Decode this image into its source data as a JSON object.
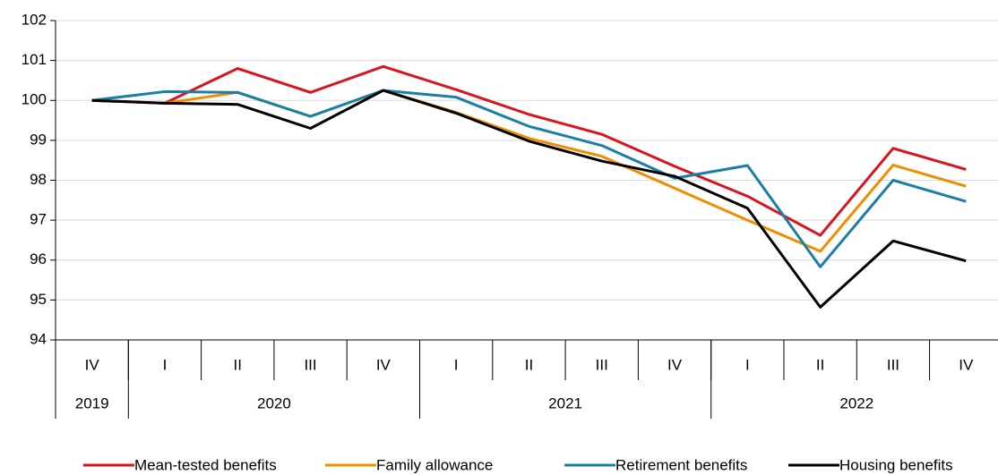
{
  "chart_data": {
    "type": "line",
    "categories": [
      "IV",
      "I",
      "II",
      "III",
      "IV",
      "I",
      "II",
      "III",
      "IV",
      "I",
      "II",
      "III",
      "IV"
    ],
    "year_groups": [
      {
        "name": "2019",
        "count": 1
      },
      {
        "name": "2020",
        "count": 4
      },
      {
        "name": "2021",
        "count": 4
      },
      {
        "name": "2022",
        "count": 4
      }
    ],
    "series": [
      {
        "name": "Mean-tested benefits",
        "color": "#d9141c",
        "values": [
          100,
          99.93,
          100.8,
          100.2,
          100.85,
          100.27,
          99.65,
          99.15,
          98.35,
          97.6,
          96.62,
          98.8,
          98.27
        ]
      },
      {
        "name": "Family allowance",
        "color": "#f08c00",
        "values": [
          100,
          99.93,
          100.2,
          99.6,
          100.25,
          99.7,
          99.05,
          98.6,
          97.8,
          97.0,
          96.22,
          98.38,
          97.85
        ]
      },
      {
        "name": "Retirement benefits",
        "color": "#1a7fa6",
        "values": [
          100,
          100.22,
          100.2,
          99.6,
          100.25,
          100.08,
          99.35,
          98.87,
          98.05,
          98.37,
          95.83,
          98.0,
          97.47
        ]
      },
      {
        "name": "Housing benefits",
        "color": "#000000",
        "values": [
          100,
          99.93,
          99.9,
          99.3,
          100.25,
          99.68,
          98.98,
          98.48,
          98.1,
          97.3,
          94.82,
          96.48,
          95.98
        ]
      }
    ],
    "ylim": [
      94,
      102
    ],
    "yticks": [
      94,
      95,
      96,
      97,
      98,
      99,
      100,
      101,
      102
    ],
    "grid": true,
    "legend": "bottom"
  }
}
